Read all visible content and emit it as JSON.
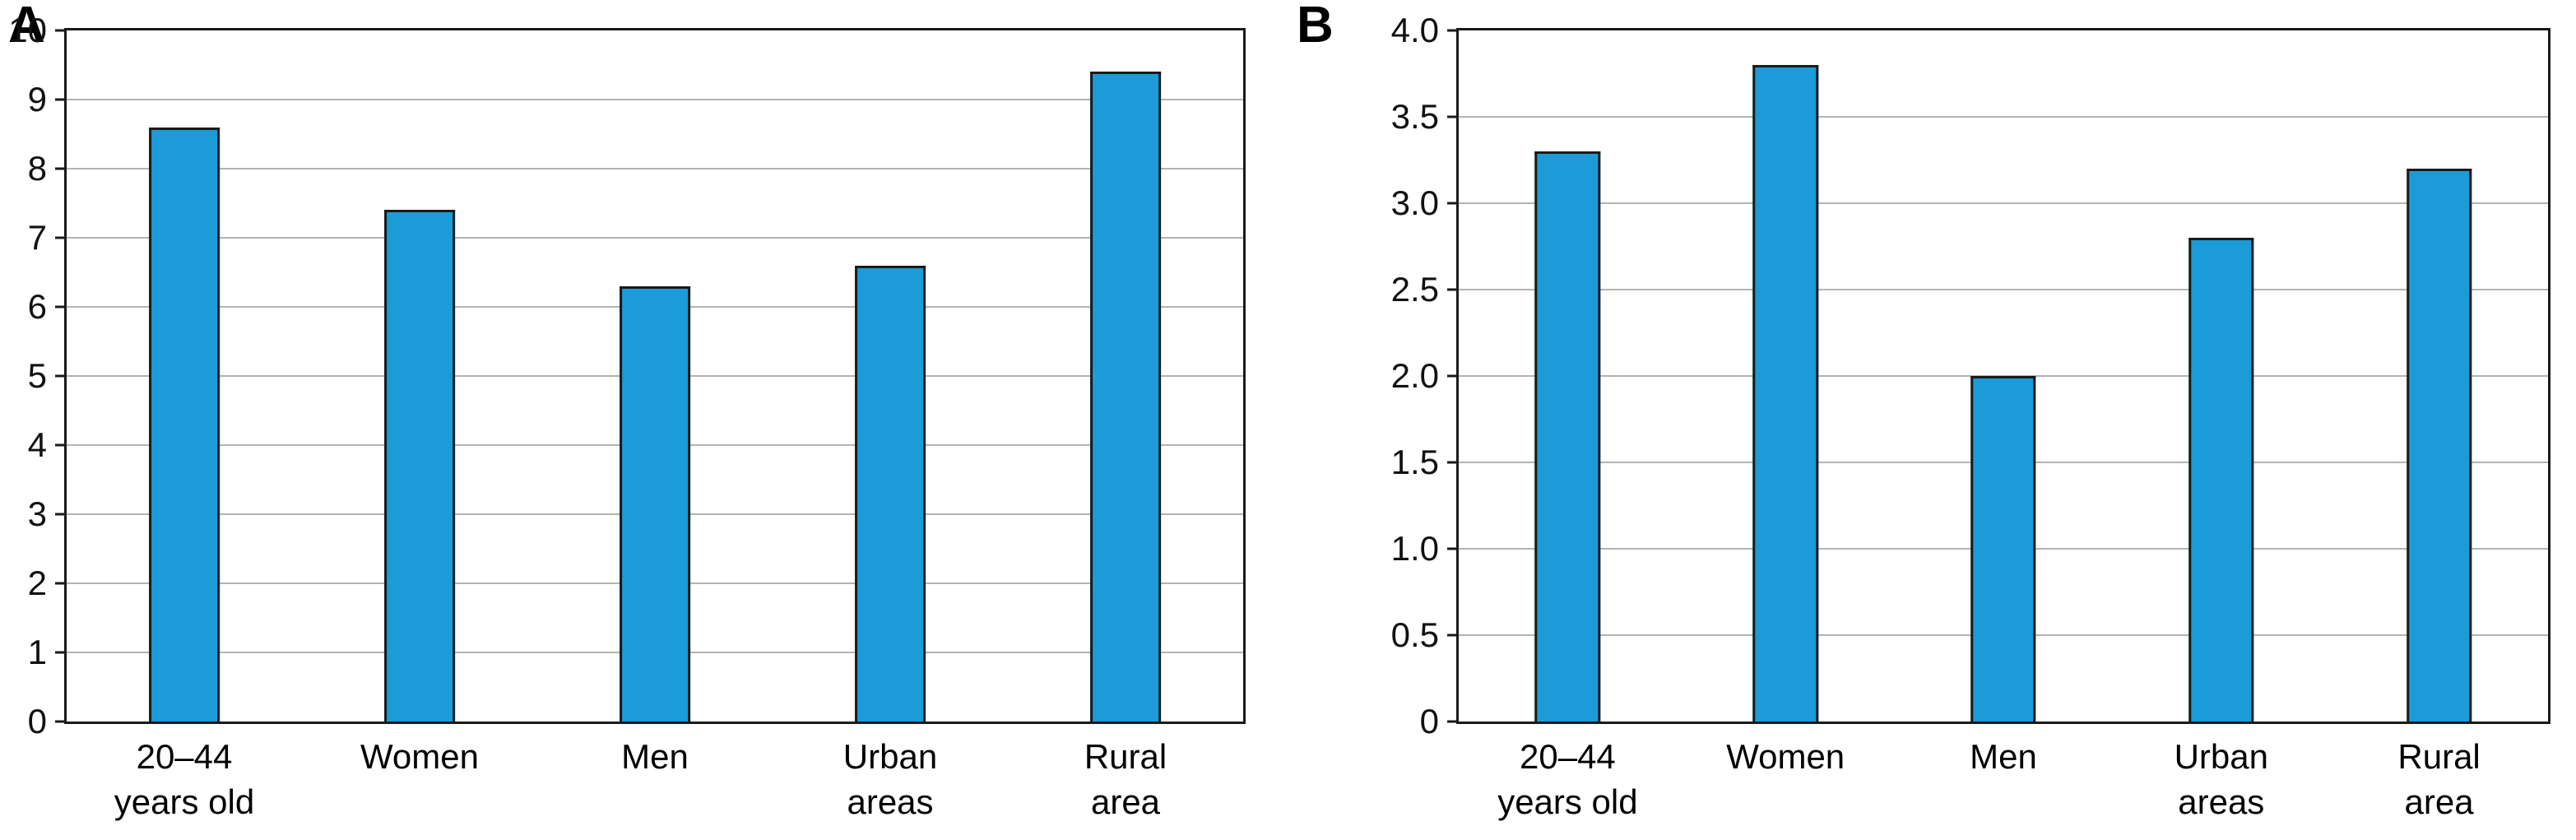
{
  "colors": {
    "bar_fill": "#1b9cd9",
    "bar_border": "#1a1a1a",
    "axis": "#1a1a1a",
    "grid": "#b3b3b3"
  },
  "chart_data": [
    {
      "type": "bar",
      "panel_label": "A",
      "title": "",
      "xlabel": "",
      "ylabel": "",
      "categories": [
        [
          "20–44",
          "years old"
        ],
        [
          "Women"
        ],
        [
          "Men"
        ],
        [
          "Urban",
          "areas"
        ],
        [
          "Rural",
          "area"
        ]
      ],
      "values": [
        8.6,
        7.4,
        6.3,
        6.6,
        9.4
      ],
      "ylim": [
        0,
        10
      ],
      "yticks": [
        0,
        1,
        2,
        3,
        4,
        5,
        6,
        7,
        8,
        9,
        10
      ],
      "ytick_labels": [
        "0",
        "1",
        "2",
        "3",
        "4",
        "5",
        "6",
        "7",
        "8",
        "9",
        "10"
      ],
      "grid": true,
      "legend": "none"
    },
    {
      "type": "bar",
      "panel_label": "B",
      "title": "",
      "xlabel": "",
      "ylabel": "",
      "categories": [
        [
          "20–44",
          "years old"
        ],
        [
          "Women"
        ],
        [
          "Men"
        ],
        [
          "Urban",
          "areas"
        ],
        [
          "Rural",
          "area"
        ]
      ],
      "values": [
        3.3,
        3.8,
        2.0,
        2.8,
        3.2
      ],
      "ylim": [
        0,
        4
      ],
      "yticks": [
        0,
        0.5,
        1,
        1.5,
        2,
        2.5,
        3,
        3.5,
        4
      ],
      "ytick_labels": [
        "0",
        "0.5",
        "1.0",
        "1.5",
        "2.0",
        "2.5",
        "3.0",
        "3.5",
        "4.0"
      ],
      "grid": true,
      "legend": "none"
    }
  ]
}
